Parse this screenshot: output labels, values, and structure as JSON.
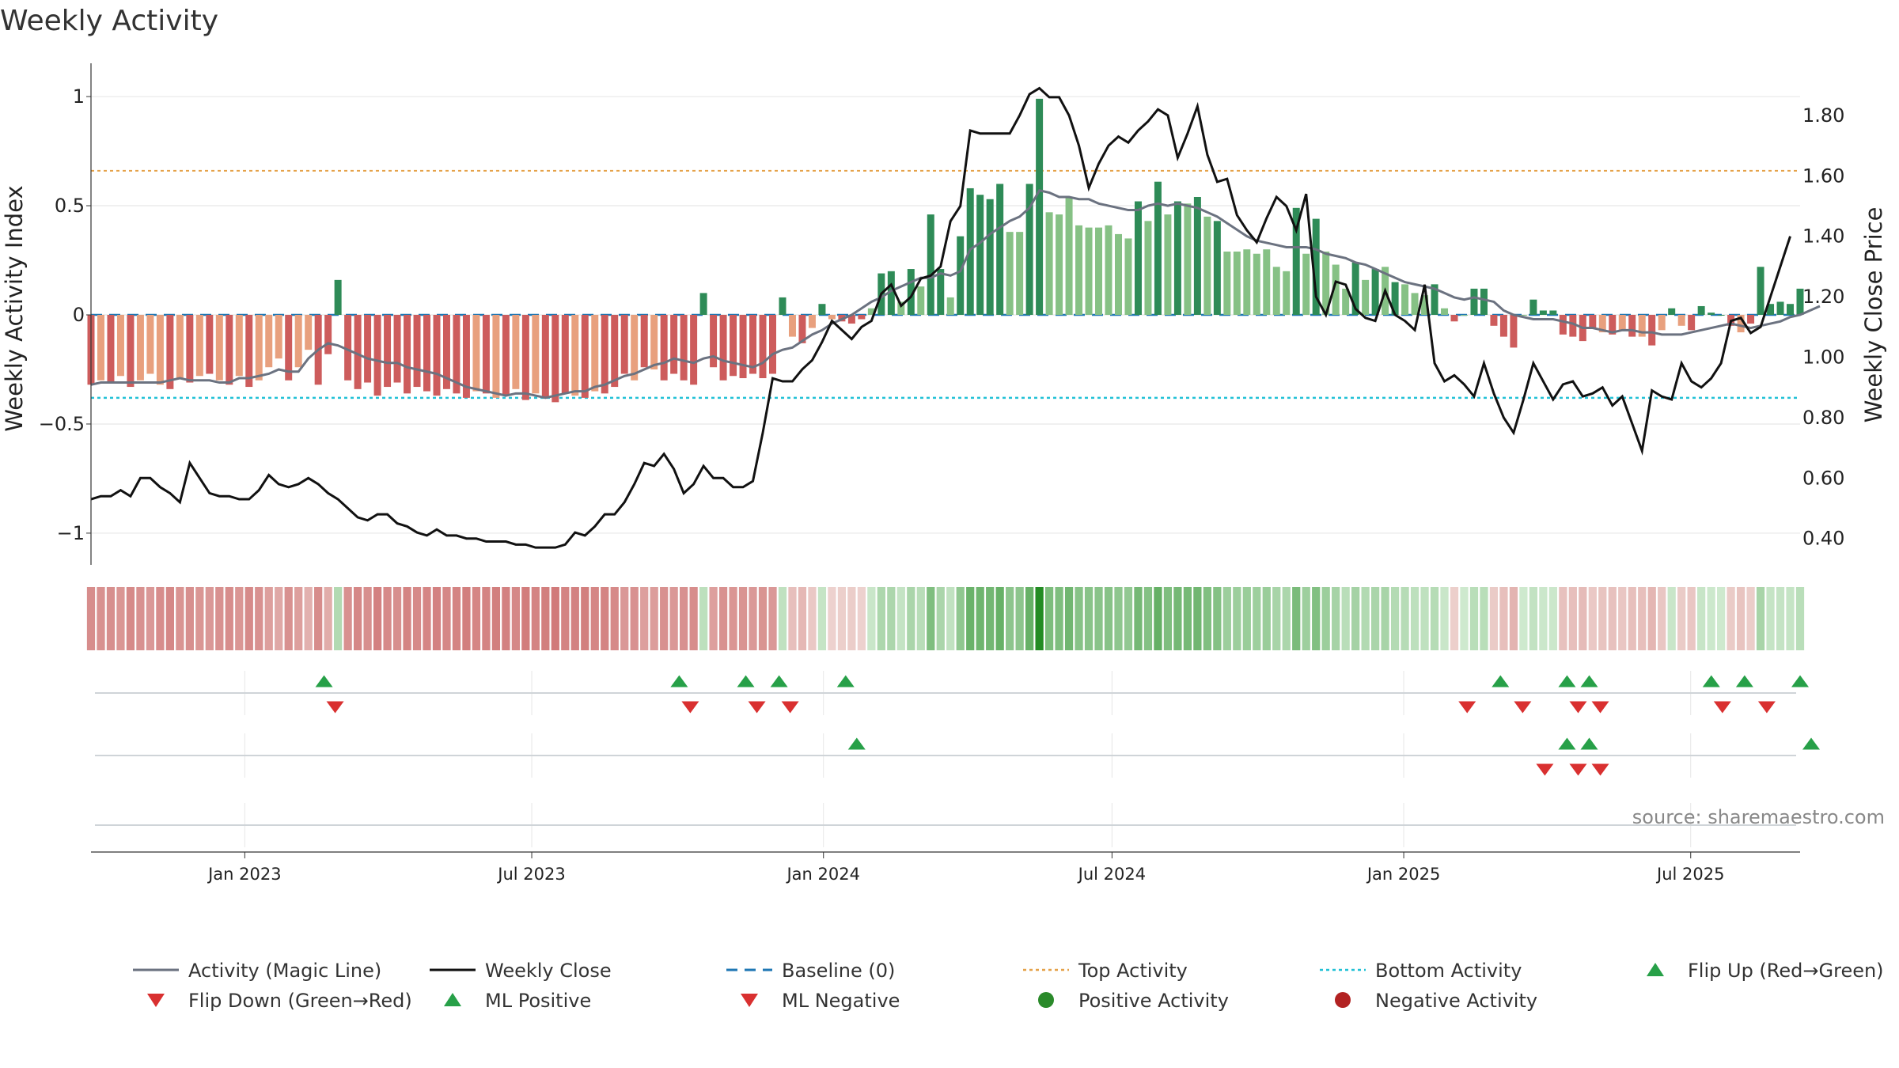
{
  "chart_data": {
    "type": "bar",
    "title": "Weekly Activity",
    "ylabel": "Weekly Activity Index",
    "y2label": "Weekly Close Price",
    "source": "source: sharemaestro.com",
    "ylim": [
      -1.08,
      1.08
    ],
    "y2lim": [
      0.36,
      1.92
    ],
    "x_range": [
      "2022-09-26",
      "2025-09-08"
    ],
    "yticks": [
      {
        "value": 1,
        "label": "1"
      },
      {
        "value": 0.5,
        "label": "0.5"
      },
      {
        "value": 0,
        "label": "0"
      },
      {
        "value": -0.5,
        "label": "−0.5"
      },
      {
        "value": -1,
        "label": "−1"
      }
    ],
    "y2ticks": [
      {
        "value": 1.8,
        "label": "1.80"
      },
      {
        "value": 1.6,
        "label": "1.60"
      },
      {
        "value": 1.4,
        "label": "1.40"
      },
      {
        "value": 1.2,
        "label": "1.20"
      },
      {
        "value": 1.0,
        "label": "1.00"
      },
      {
        "value": 0.8,
        "label": "0.80"
      },
      {
        "value": 0.6,
        "label": "0.60"
      },
      {
        "value": 0.4,
        "label": "0.40"
      }
    ],
    "xticks": [
      {
        "date": "2023-01-01",
        "label": "Jan 2023"
      },
      {
        "date": "2023-07-01",
        "label": "Jul 2023"
      },
      {
        "date": "2024-01-01",
        "label": "Jan 2024"
      },
      {
        "date": "2024-07-01",
        "label": "Jul 2024"
      },
      {
        "date": "2025-01-01",
        "label": "Jan 2025"
      },
      {
        "date": "2025-07-01",
        "label": "Jul 2025"
      }
    ],
    "reference_lines": {
      "baseline": 0,
      "top_activity": 0.66,
      "bottom_activity": -0.38
    },
    "series": [
      {
        "name": "Activity",
        "values": [
          -0.32,
          -0.3,
          -0.31,
          -0.28,
          -0.33,
          -0.3,
          -0.27,
          -0.32,
          -0.34,
          -0.29,
          -0.31,
          -0.28,
          -0.27,
          -0.3,
          -0.32,
          -0.28,
          -0.33,
          -0.3,
          -0.24,
          -0.2,
          -0.3,
          -0.24,
          -0.16,
          -0.32,
          -0.18,
          0.16,
          -0.3,
          -0.34,
          -0.31,
          -0.37,
          -0.33,
          -0.31,
          -0.36,
          -0.33,
          -0.35,
          -0.37,
          -0.34,
          -0.36,
          -0.38,
          -0.35,
          -0.36,
          -0.38,
          -0.37,
          -0.34,
          -0.39,
          -0.36,
          -0.38,
          -0.4,
          -0.36,
          -0.37,
          -0.38,
          -0.35,
          -0.36,
          -0.33,
          -0.27,
          -0.3,
          -0.24,
          -0.25,
          -0.3,
          -0.27,
          -0.3,
          -0.32,
          0.1,
          -0.24,
          -0.3,
          -0.28,
          -0.29,
          -0.27,
          -0.29,
          -0.27,
          0.08,
          -0.1,
          -0.13,
          -0.06,
          0.05,
          -0.02,
          -0.03,
          -0.04,
          -0.02,
          0.03,
          0.19,
          0.2,
          0.06,
          0.21,
          0.13,
          0.46,
          0.21,
          0.08,
          0.36,
          0.58,
          0.55,
          0.53,
          0.6,
          0.38,
          0.38,
          0.6,
          0.99,
          0.47,
          0.46,
          0.54,
          0.41,
          0.4,
          0.4,
          0.41,
          0.37,
          0.35,
          0.52,
          0.43,
          0.61,
          0.46,
          0.52,
          0.51,
          0.54,
          0.45,
          0.43,
          0.29,
          0.29,
          0.3,
          0.28,
          0.3,
          0.22,
          0.2,
          0.49,
          0.28,
          0.44,
          0.29,
          0.23,
          0.12,
          0.24,
          0.16,
          0.21,
          0.22,
          0.15,
          0.14,
          0.1,
          0.09,
          0.14,
          0.03,
          -0.03,
          0.0,
          0.12,
          0.12,
          -0.05,
          -0.1,
          -0.15,
          0.0,
          0.07,
          0.02,
          0.02,
          -0.09,
          -0.1,
          -0.12,
          -0.06,
          -0.08,
          -0.09,
          -0.07,
          -0.1,
          -0.1,
          -0.14,
          -0.07,
          0.03,
          -0.05,
          -0.07,
          0.04,
          0.01,
          0.0,
          -0.05,
          -0.08,
          -0.04,
          0.22,
          0.05,
          0.06,
          0.05,
          0.12
        ]
      },
      {
        "name": "Activity (Magic Line)",
        "values": [
          -0.32,
          -0.31,
          -0.31,
          -0.31,
          -0.31,
          -0.31,
          -0.31,
          -0.31,
          -0.3,
          -0.29,
          -0.3,
          -0.3,
          -0.3,
          -0.31,
          -0.31,
          -0.29,
          -0.29,
          -0.28,
          -0.27,
          -0.25,
          -0.26,
          -0.26,
          -0.2,
          -0.16,
          -0.13,
          -0.14,
          -0.16,
          -0.18,
          -0.2,
          -0.21,
          -0.22,
          -0.22,
          -0.24,
          -0.25,
          -0.26,
          -0.27,
          -0.29,
          -0.31,
          -0.33,
          -0.34,
          -0.35,
          -0.36,
          -0.37,
          -0.36,
          -0.36,
          -0.37,
          -0.38,
          -0.37,
          -0.36,
          -0.35,
          -0.35,
          -0.33,
          -0.32,
          -0.3,
          -0.28,
          -0.27,
          -0.25,
          -0.23,
          -0.22,
          -0.2,
          -0.21,
          -0.22,
          -0.2,
          -0.19,
          -0.21,
          -0.22,
          -0.23,
          -0.24,
          -0.22,
          -0.18,
          -0.16,
          -0.15,
          -0.12,
          -0.09,
          -0.07,
          -0.04,
          -0.02,
          -0.0,
          0.03,
          0.06,
          0.08,
          0.11,
          0.13,
          0.15,
          0.17,
          0.17,
          0.19,
          0.18,
          0.2,
          0.3,
          0.33,
          0.37,
          0.4,
          0.43,
          0.45,
          0.49,
          0.57,
          0.56,
          0.54,
          0.54,
          0.53,
          0.53,
          0.51,
          0.5,
          0.49,
          0.48,
          0.48,
          0.5,
          0.51,
          0.5,
          0.51,
          0.5,
          0.49,
          0.47,
          0.45,
          0.42,
          0.39,
          0.36,
          0.34,
          0.33,
          0.32,
          0.31,
          0.31,
          0.31,
          0.3,
          0.28,
          0.27,
          0.26,
          0.24,
          0.23,
          0.21,
          0.19,
          0.17,
          0.15,
          0.14,
          0.13,
          0.12,
          0.1,
          0.08,
          0.07,
          0.08,
          0.07,
          0.06,
          0.02,
          0.0,
          -0.01,
          -0.02,
          -0.02,
          -0.02,
          -0.03,
          -0.04,
          -0.06,
          -0.06,
          -0.07,
          -0.08,
          -0.07,
          -0.07,
          -0.08,
          -0.08,
          -0.09,
          -0.09,
          -0.09,
          -0.08,
          -0.07,
          -0.06,
          -0.05,
          -0.04,
          -0.05,
          -0.06,
          -0.05,
          -0.04,
          -0.03,
          -0.01,
          0.0,
          0.02,
          0.04
        ]
      },
      {
        "name": "Weekly Close",
        "values": [
          0.53,
          0.54,
          0.54,
          0.56,
          0.54,
          0.6,
          0.6,
          0.57,
          0.55,
          0.52,
          0.65,
          0.6,
          0.55,
          0.54,
          0.54,
          0.53,
          0.53,
          0.56,
          0.61,
          0.58,
          0.57,
          0.58,
          0.6,
          0.58,
          0.55,
          0.53,
          0.5,
          0.47,
          0.46,
          0.48,
          0.48,
          0.45,
          0.44,
          0.42,
          0.41,
          0.43,
          0.41,
          0.41,
          0.4,
          0.4,
          0.39,
          0.39,
          0.39,
          0.38,
          0.38,
          0.37,
          0.37,
          0.37,
          0.38,
          0.42,
          0.41,
          0.44,
          0.48,
          0.48,
          0.52,
          0.58,
          0.65,
          0.64,
          0.68,
          0.63,
          0.55,
          0.58,
          0.64,
          0.6,
          0.6,
          0.57,
          0.57,
          0.59,
          0.75,
          0.93,
          0.92,
          0.92,
          0.96,
          0.99,
          1.05,
          1.12,
          1.09,
          1.06,
          1.1,
          1.12,
          1.21,
          1.24,
          1.17,
          1.2,
          1.26,
          1.27,
          1.3,
          1.45,
          1.5,
          1.75,
          1.74,
          1.74,
          1.74,
          1.74,
          1.8,
          1.87,
          1.89,
          1.86,
          1.86,
          1.8,
          1.7,
          1.56,
          1.64,
          1.7,
          1.73,
          1.71,
          1.75,
          1.78,
          1.82,
          1.8,
          1.66,
          1.74,
          1.83,
          1.67,
          1.58,
          1.59,
          1.47,
          1.42,
          1.38,
          1.46,
          1.53,
          1.5,
          1.42,
          1.54,
          1.2,
          1.14,
          1.25,
          1.24,
          1.16,
          1.13,
          1.12,
          1.22,
          1.14,
          1.12,
          1.09,
          1.24,
          0.98,
          0.92,
          0.94,
          0.91,
          0.87,
          0.98,
          0.88,
          0.8,
          0.75,
          0.86,
          0.98,
          0.92,
          0.86,
          0.91,
          0.92,
          0.87,
          0.88,
          0.9,
          0.84,
          0.87,
          0.78,
          0.69,
          0.89,
          0.87,
          0.86,
          0.98,
          0.92,
          0.9,
          0.93,
          0.98,
          1.12,
          1.13,
          1.08,
          1.1,
          1.2,
          1.3,
          1.4
        ]
      }
    ],
    "bottom_panels": {
      "flip_up_dates": [
        "2023-02-20",
        "2023-10-02",
        "2023-11-13",
        "2023-12-04",
        "2024-01-15",
        "2025-03-03",
        "2025-04-14",
        "2025-04-28",
        "2025-07-14",
        "2025-08-04",
        "2025-09-08"
      ],
      "flip_down_dates": [
        "2023-02-27",
        "2023-10-09",
        "2023-11-20",
        "2023-12-11",
        "2025-02-10",
        "2025-03-17",
        "2025-04-21",
        "2025-05-05",
        "2025-07-21",
        "2025-08-18"
      ],
      "ml_positive_dates": [
        "2024-01-22",
        "2025-04-14",
        "2025-04-28",
        "2025-09-15"
      ],
      "ml_negative_dates": [
        "2025-03-31",
        "2025-04-21",
        "2025-05-05"
      ]
    }
  },
  "legend": [
    {
      "label": "Activity (Magic Line)",
      "kind": "line",
      "color": "#6b7280"
    },
    {
      "label": "Weekly Close",
      "kind": "line",
      "color": "#111111"
    },
    {
      "label": "Baseline (0)",
      "kind": "dash",
      "color": "#1f77b4"
    },
    {
      "label": "Top Activity",
      "kind": "dot",
      "color": "#e5a24a"
    },
    {
      "label": "Bottom Activity",
      "kind": "dot",
      "color": "#22c1d6"
    },
    {
      "label": "Flip Up (Red→Green)",
      "kind": "tri-up",
      "color": "#27a048"
    },
    {
      "label": "Flip Down (Green→Red)",
      "kind": "tri-down",
      "color": "#d93030"
    },
    {
      "label": "ML Positive",
      "kind": "tri-up",
      "color": "#27a048"
    },
    {
      "label": "ML Negative",
      "kind": "tri-down",
      "color": "#d93030"
    },
    {
      "label": "Positive Activity",
      "kind": "circle",
      "color": "#2a8a2a"
    },
    {
      "label": "Negative Activity",
      "kind": "circle",
      "color": "#b22222"
    }
  ],
  "colors": {
    "pos_strong": "#2e8b57",
    "pos_light": "#86c185",
    "neg_strong": "#cd5c5c",
    "neg_light": "#e8a07e",
    "magic_line": "#6b7280",
    "close": "#111111",
    "grid": "#e8e8e8"
  }
}
